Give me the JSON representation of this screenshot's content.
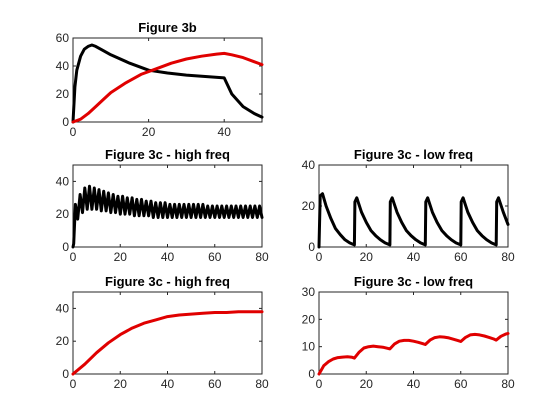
{
  "colors": {
    "black_series": "#000000",
    "red_series": "#e00000",
    "axis": "#262626"
  },
  "chart_data": [
    {
      "id": "a",
      "type": "line",
      "title": "Figure 3b",
      "xlim": [
        0,
        50
      ],
      "ylim": [
        0,
        60
      ],
      "xticks": [
        "0",
        "20",
        "40"
      ],
      "xtick_values": [
        0,
        20,
        40
      ],
      "yticks": [
        "0",
        "20",
        "40",
        "60"
      ],
      "ytick_values": [
        0,
        20,
        40,
        60
      ],
      "series": [
        {
          "color": "#000000",
          "x": [
            0,
            0.5,
            1,
            2,
            3,
            4,
            5,
            6,
            8,
            10,
            15,
            20,
            25,
            30,
            35,
            40,
            42,
            45,
            48,
            50
          ],
          "y": [
            0,
            25,
            37,
            47,
            52,
            54,
            55,
            54,
            51,
            48,
            42,
            37,
            35,
            33.5,
            32.5,
            31.5,
            20,
            11,
            6,
            3.5
          ]
        },
        {
          "color": "#e00000",
          "x": [
            0,
            2,
            4,
            6,
            8,
            10,
            14,
            18,
            22,
            26,
            30,
            34,
            38,
            40,
            42,
            45,
            48,
            50
          ],
          "y": [
            0,
            2,
            6,
            11,
            16,
            21,
            28,
            34,
            38,
            42,
            45,
            47,
            48.5,
            49,
            48,
            46,
            43,
            41
          ]
        }
      ]
    },
    {
      "id": "c",
      "type": "line",
      "title": "Figure 3c - high freq",
      "xlim": [
        0,
        80
      ],
      "ylim": [
        0,
        50
      ],
      "xticks": [
        "0",
        "20",
        "40",
        "60",
        "80"
      ],
      "xtick_values": [
        0,
        20,
        40,
        60,
        80
      ],
      "yticks": [
        "0",
        "20",
        "40"
      ],
      "ytick_values": [
        0,
        20,
        40
      ],
      "series": [
        {
          "color": "#000000",
          "x": [
            0,
            0.3,
            1,
            2,
            3,
            4,
            5,
            6,
            7,
            8,
            9,
            10,
            11,
            12,
            13,
            14,
            15,
            16,
            17,
            18,
            19,
            20,
            21,
            22,
            23,
            24,
            25,
            26,
            27,
            28,
            29,
            30,
            31,
            32,
            33,
            34,
            35,
            36,
            37,
            38,
            39,
            40,
            41,
            42,
            43,
            44,
            45,
            46,
            47,
            48,
            49,
            50,
            51,
            52,
            53,
            54,
            55,
            56,
            57,
            58,
            59,
            60,
            61,
            62,
            63,
            64,
            65,
            66,
            67,
            68,
            69,
            70,
            71,
            72,
            73,
            74,
            75,
            76,
            77,
            78,
            79,
            80
          ],
          "y": [
            0,
            2,
            26,
            17,
            32,
            21,
            36,
            23,
            37,
            23,
            36,
            23,
            35,
            22,
            34,
            22,
            33,
            21,
            32,
            21,
            31,
            20,
            31,
            20,
            30,
            20,
            30,
            19,
            29,
            19,
            29,
            19,
            28,
            19,
            28,
            18,
            27,
            18,
            27,
            18,
            27,
            18,
            26,
            18,
            26,
            18,
            26,
            18,
            26,
            18,
            26,
            18,
            26,
            18,
            26,
            18,
            26,
            18,
            25,
            18,
            25,
            18,
            25,
            18,
            25,
            18,
            25,
            18,
            25,
            18,
            25,
            18,
            25,
            18,
            25,
            18,
            25,
            18,
            25,
            18,
            25,
            18
          ]
        }
      ]
    },
    {
      "id": "d",
      "type": "line",
      "title": "Figure 3c - low freq",
      "xlim": [
        0,
        80
      ],
      "ylim": [
        0,
        40
      ],
      "xticks": [
        "0",
        "20",
        "40",
        "60",
        "80"
      ],
      "xtick_values": [
        0,
        20,
        40,
        60,
        80
      ],
      "yticks": [
        "0",
        "20",
        "40"
      ],
      "ytick_values": [
        0,
        20,
        40
      ],
      "series": [
        {
          "color": "#000000",
          "x": [
            0,
            0.5,
            1.5,
            3,
            5,
            7,
            9,
            11,
            13,
            15,
            15.2,
            16,
            18,
            20,
            22,
            24,
            26,
            28,
            30,
            30.2,
            31,
            33,
            35,
            37,
            39,
            41,
            43,
            45,
            45.2,
            46,
            48,
            50,
            52,
            54,
            56,
            58,
            60,
            60.2,
            61,
            63,
            65,
            67,
            69,
            71,
            73,
            75,
            75.2,
            76,
            78,
            80
          ],
          "y": [
            0,
            25,
            26,
            20,
            14,
            9,
            6,
            3.5,
            2,
            1,
            22,
            24,
            17,
            12,
            8,
            5.5,
            3.5,
            2,
            1,
            22,
            24,
            17,
            12,
            8,
            5.5,
            3.5,
            2,
            1,
            22,
            24,
            17,
            12,
            8,
            5.5,
            3.5,
            2,
            1,
            22,
            24,
            17,
            12,
            8,
            5.5,
            3.5,
            2,
            1,
            22,
            24,
            17,
            11
          ]
        }
      ]
    },
    {
      "id": "e",
      "type": "line",
      "title": "Figure 3c - high freq",
      "xlim": [
        0,
        80
      ],
      "ylim": [
        0,
        50
      ],
      "xticks": [
        "0",
        "20",
        "40",
        "60",
        "80"
      ],
      "xtick_values": [
        0,
        20,
        40,
        60,
        80
      ],
      "yticks": [
        "0",
        "20",
        "40"
      ],
      "ytick_values": [
        0,
        20,
        40
      ],
      "series": [
        {
          "color": "#e00000",
          "x": [
            0,
            5,
            10,
            15,
            20,
            25,
            30,
            35,
            40,
            45,
            50,
            55,
            60,
            65,
            70,
            75,
            80
          ],
          "y": [
            0,
            6,
            13,
            19,
            24,
            28,
            31,
            33,
            35,
            36,
            36.5,
            37,
            37.5,
            37.5,
            38,
            38,
            38
          ]
        }
      ]
    },
    {
      "id": "f",
      "type": "line",
      "title": "Figure 3c - low freq",
      "xlim": [
        0,
        80
      ],
      "ylim": [
        0,
        30
      ],
      "xticks": [
        "0",
        "20",
        "40",
        "60",
        "80"
      ],
      "xtick_values": [
        0,
        20,
        40,
        60,
        80
      ],
      "yticks": [
        "0",
        "10",
        "20",
        "30"
      ],
      "ytick_values": [
        0,
        10,
        20,
        30
      ],
      "series": [
        {
          "color": "#e00000",
          "x": [
            0,
            1,
            2,
            4,
            6,
            8,
            10,
            12,
            14,
            15,
            17,
            19,
            21,
            23,
            25,
            27,
            29,
            30,
            32,
            34,
            36,
            38,
            40,
            42,
            44,
            45,
            47,
            49,
            51,
            53,
            55,
            57,
            59,
            60,
            62,
            64,
            66,
            68,
            70,
            72,
            74,
            75,
            77,
            79,
            80
          ],
          "y": [
            0,
            1.5,
            3,
            4.5,
            5.5,
            6,
            6.2,
            6.3,
            6.1,
            5.8,
            8,
            9.5,
            10,
            10.2,
            10,
            9.8,
            9.4,
            9.2,
            11,
            12,
            12.3,
            12.3,
            12,
            11.6,
            11.1,
            10.8,
            12.4,
            13.3,
            13.6,
            13.5,
            13.2,
            12.7,
            12.2,
            11.9,
            13.4,
            14.3,
            14.5,
            14.3,
            13.9,
            13.4,
            12.8,
            12.4,
            13.8,
            14.6,
            14.8
          ]
        }
      ]
    }
  ]
}
